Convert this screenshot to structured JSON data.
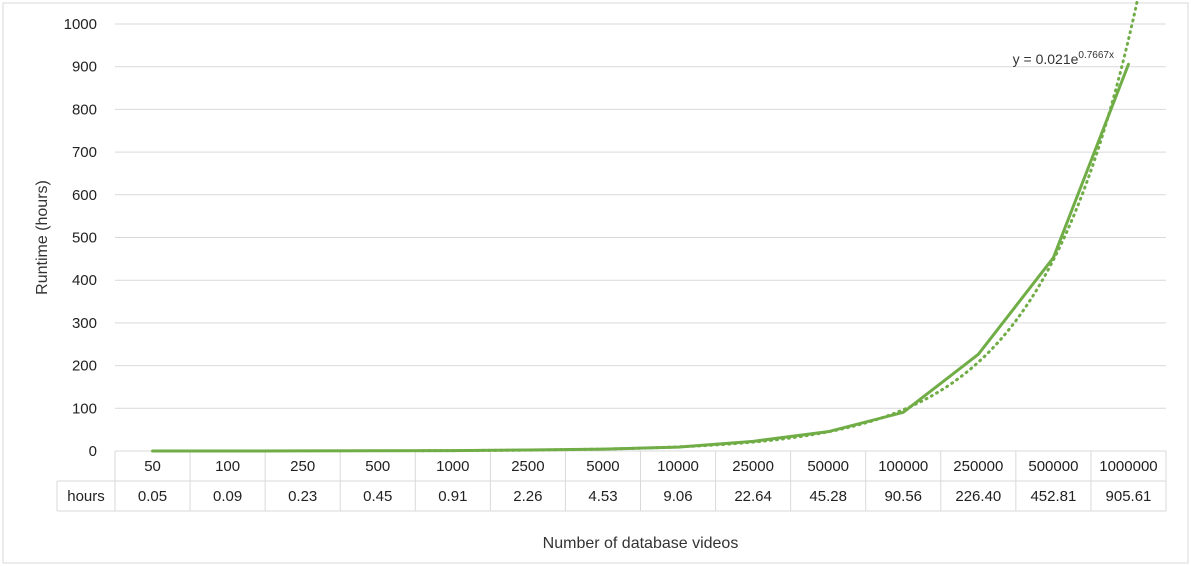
{
  "chart_data": {
    "type": "line",
    "xlabel": "Number of database videos",
    "ylabel": "Runtime (hours)",
    "ylim": [
      0,
      1000
    ],
    "yticks": [
      0,
      100,
      200,
      300,
      400,
      500,
      600,
      700,
      800,
      900,
      1000
    ],
    "categories": [
      "50",
      "100",
      "250",
      "500",
      "1000",
      "2500",
      "5000",
      "10000",
      "25000",
      "50000",
      "100000",
      "250000",
      "500000",
      "1000000"
    ],
    "series": [
      {
        "name": "hours",
        "values": [
          0.05,
          0.09,
          0.23,
          0.45,
          0.91,
          2.26,
          4.53,
          9.06,
          22.64,
          45.28,
          90.56,
          226.4,
          452.81,
          905.61
        ],
        "value_labels": [
          "0.05",
          "0.09",
          "0.23",
          "0.45",
          "0.91",
          "2.26",
          "4.53",
          "9.06",
          "22.64",
          "45.28",
          "90.56",
          "226.40",
          "452.81",
          "905.61"
        ],
        "color": "#70ad47"
      }
    ],
    "trendline": {
      "type": "exponential",
      "equation_prefix": "y = 0.021e",
      "equation_exponent": "0.7667x",
      "a": 0.021,
      "b": 0.7667,
      "color": "#70ad47",
      "style": "dotted"
    },
    "data_table": true,
    "grid": true,
    "legend": "none",
    "colors": {
      "gridline": "#d9d9d9",
      "border": "#d9d9d9",
      "line": "#70ad47"
    }
  }
}
